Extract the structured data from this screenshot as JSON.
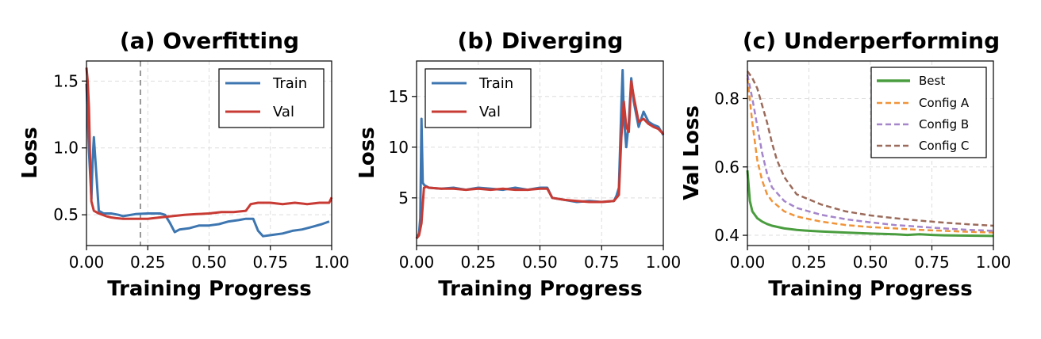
{
  "colors": {
    "train": "#3d76b0",
    "val": "#c83b34",
    "best": "#4a9d3f",
    "config_a": "#f0943a",
    "config_b": "#a586cb",
    "config_c": "#9b6b5b",
    "marker": "#999999"
  },
  "chart_data": [
    {
      "type": "line",
      "title": "(a) Overfitting",
      "xlabel": "Training Progress",
      "ylabel": "Loss",
      "xlim": [
        0,
        1
      ],
      "ylim": [
        0.27,
        1.65
      ],
      "xticks": [
        0,
        0.25,
        0.5,
        0.75,
        1.0
      ],
      "xtick_labels": [
        "0.00",
        "0.25",
        "0.50",
        "0.75",
        "1.00"
      ],
      "yticks": [
        0.5,
        1.0,
        1.5
      ],
      "ytick_labels": [
        "0.5",
        "1.0",
        "1.5"
      ],
      "grid": true,
      "legend": "top-right",
      "vline": 0.22,
      "series": [
        {
          "name": "Train",
          "color_key": "train",
          "x": [
            0,
            0.01,
            0.02,
            0.025,
            0.03,
            0.05,
            0.07,
            0.1,
            0.13,
            0.15,
            0.2,
            0.25,
            0.3,
            0.32,
            0.34,
            0.36,
            0.38,
            0.42,
            0.46,
            0.5,
            0.54,
            0.58,
            0.62,
            0.65,
            0.68,
            0.7,
            0.72,
            0.76,
            0.8,
            0.84,
            0.88,
            0.92,
            0.96,
            0.99
          ],
          "y": [
            1.48,
            0.98,
            0.62,
            0.9,
            1.08,
            0.53,
            0.51,
            0.51,
            0.5,
            0.49,
            0.505,
            0.51,
            0.51,
            0.5,
            0.44,
            0.37,
            0.39,
            0.4,
            0.42,
            0.42,
            0.43,
            0.45,
            0.46,
            0.47,
            0.47,
            0.38,
            0.34,
            0.35,
            0.36,
            0.38,
            0.39,
            0.41,
            0.43,
            0.45
          ]
        },
        {
          "name": "Val",
          "color_key": "val",
          "x": [
            0,
            0.005,
            0.01,
            0.015,
            0.02,
            0.03,
            0.05,
            0.08,
            0.1,
            0.12,
            0.15,
            0.2,
            0.25,
            0.3,
            0.35,
            0.4,
            0.45,
            0.5,
            0.55,
            0.6,
            0.65,
            0.67,
            0.7,
            0.75,
            0.8,
            0.85,
            0.9,
            0.95,
            0.99,
            1.0
          ],
          "y": [
            1.6,
            1.5,
            1.3,
            0.9,
            0.6,
            0.53,
            0.51,
            0.49,
            0.48,
            0.475,
            0.47,
            0.47,
            0.47,
            0.48,
            0.49,
            0.5,
            0.505,
            0.51,
            0.52,
            0.52,
            0.53,
            0.58,
            0.59,
            0.59,
            0.58,
            0.59,
            0.58,
            0.59,
            0.59,
            0.63
          ]
        }
      ]
    },
    {
      "type": "line",
      "title": "(b) Diverging",
      "xlabel": "Training Progress",
      "ylabel": "Loss",
      "xlim": [
        0,
        1
      ],
      "ylim": [
        0.3,
        18.5
      ],
      "xticks": [
        0,
        0.25,
        0.5,
        0.75,
        1.0
      ],
      "xtick_labels": [
        "0.00",
        "0.25",
        "0.50",
        "0.75",
        "1.00"
      ],
      "yticks": [
        5,
        10,
        15
      ],
      "ytick_labels": [
        "5",
        "10",
        "15"
      ],
      "grid": true,
      "legend": "top-left",
      "series": [
        {
          "name": "Train",
          "color_key": "train",
          "x": [
            0,
            0.01,
            0.015,
            0.02,
            0.025,
            0.03,
            0.035,
            0.05,
            0.1,
            0.15,
            0.2,
            0.25,
            0.3,
            0.35,
            0.4,
            0.45,
            0.5,
            0.53,
            0.55,
            0.6,
            0.65,
            0.7,
            0.75,
            0.8,
            0.81,
            0.82,
            0.83,
            0.835,
            0.84,
            0.85,
            0.86,
            0.87,
            0.88,
            0.9,
            0.92,
            0.94,
            0.96,
            0.98,
            1.0
          ],
          "y": [
            1.0,
            1.5,
            3.0,
            12.8,
            6.5,
            6.3,
            6.2,
            6.0,
            5.9,
            6.0,
            5.8,
            6.0,
            5.9,
            5.8,
            6.0,
            5.8,
            6.0,
            6.0,
            5.0,
            4.8,
            4.6,
            4.7,
            4.6,
            4.7,
            5.2,
            6.0,
            14.0,
            17.6,
            13.0,
            10.0,
            12.5,
            16.8,
            14.5,
            12.0,
            13.5,
            12.5,
            12.2,
            12.0,
            11.2
          ]
        },
        {
          "name": "Val",
          "color_key": "val",
          "x": [
            0,
            0.01,
            0.02,
            0.03,
            0.04,
            0.05,
            0.1,
            0.15,
            0.2,
            0.25,
            0.3,
            0.35,
            0.4,
            0.45,
            0.5,
            0.53,
            0.55,
            0.6,
            0.65,
            0.7,
            0.75,
            0.8,
            0.82,
            0.83,
            0.84,
            0.85,
            0.86,
            0.87,
            0.88,
            0.9,
            0.92,
            0.94,
            0.96,
            0.98,
            1.0
          ],
          "y": [
            1.0,
            1.3,
            2.5,
            6.0,
            6.1,
            6.0,
            5.9,
            5.9,
            5.8,
            5.9,
            5.8,
            5.9,
            5.8,
            5.8,
            5.9,
            5.9,
            5.0,
            4.8,
            4.7,
            4.6,
            4.6,
            4.7,
            5.3,
            11.0,
            14.5,
            12.0,
            11.5,
            16.5,
            15.0,
            12.5,
            12.8,
            12.3,
            12.0,
            11.8,
            11.3
          ]
        }
      ]
    },
    {
      "type": "line",
      "title": "(c) Underperforming",
      "xlabel": "Training Progress",
      "ylabel": "Val Loss",
      "xlim": [
        0,
        1
      ],
      "ylim": [
        0.37,
        0.91
      ],
      "xticks": [
        0,
        0.25,
        0.5,
        0.75,
        1.0
      ],
      "xtick_labels": [
        "0.00",
        "0.25",
        "0.50",
        "0.75",
        "1.00"
      ],
      "yticks": [
        0.4,
        0.6,
        0.8
      ],
      "ytick_labels": [
        "0.4",
        "0.6",
        "0.8"
      ],
      "grid": true,
      "legend": "top-right",
      "series": [
        {
          "name": "Best",
          "color_key": "best",
          "dashed": false,
          "x": [
            0,
            0.01,
            0.02,
            0.04,
            0.06,
            0.08,
            0.1,
            0.15,
            0.2,
            0.25,
            0.3,
            0.4,
            0.5,
            0.6,
            0.65,
            0.7,
            0.75,
            0.8,
            0.9,
            1.0
          ],
          "y": [
            0.59,
            0.5,
            0.47,
            0.45,
            0.44,
            0.433,
            0.428,
            0.42,
            0.416,
            0.413,
            0.411,
            0.408,
            0.405,
            0.403,
            0.401,
            0.403,
            0.401,
            0.4,
            0.399,
            0.398
          ]
        },
        {
          "name": "Config A",
          "color_key": "config_a",
          "dashed": true,
          "x": [
            0,
            0.02,
            0.04,
            0.06,
            0.08,
            0.1,
            0.15,
            0.2,
            0.3,
            0.4,
            0.5,
            0.6,
            0.7,
            0.8,
            0.9,
            1.0
          ],
          "y": [
            0.86,
            0.73,
            0.62,
            0.56,
            0.52,
            0.5,
            0.47,
            0.455,
            0.44,
            0.43,
            0.424,
            0.42,
            0.416,
            0.413,
            0.41,
            0.408
          ]
        },
        {
          "name": "Config B",
          "color_key": "config_b",
          "dashed": true,
          "x": [
            0,
            0.02,
            0.04,
            0.06,
            0.08,
            0.1,
            0.15,
            0.2,
            0.3,
            0.4,
            0.5,
            0.6,
            0.7,
            0.8,
            0.9,
            1.0
          ],
          "y": [
            0.87,
            0.8,
            0.72,
            0.64,
            0.58,
            0.54,
            0.5,
            0.48,
            0.46,
            0.447,
            0.438,
            0.43,
            0.425,
            0.42,
            0.416,
            0.413
          ]
        },
        {
          "name": "Config C",
          "color_key": "config_c",
          "dashed": true,
          "x": [
            0,
            0.02,
            0.04,
            0.06,
            0.08,
            0.1,
            0.12,
            0.15,
            0.2,
            0.3,
            0.4,
            0.5,
            0.6,
            0.7,
            0.8,
            0.9,
            1.0
          ],
          "y": [
            0.88,
            0.86,
            0.83,
            0.78,
            0.73,
            0.67,
            0.62,
            0.57,
            0.52,
            0.49,
            0.47,
            0.458,
            0.45,
            0.443,
            0.437,
            0.432,
            0.428
          ]
        }
      ]
    }
  ]
}
